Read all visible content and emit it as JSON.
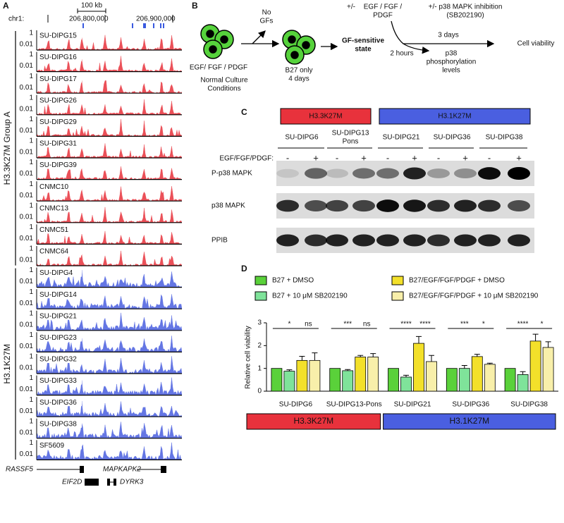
{
  "panel_a": {
    "label": "A",
    "scale_label": "100 kb",
    "chrom": "chr1:",
    "coords": [
      "206,800,000",
      "206,900,000"
    ],
    "track_ticks": [
      "1",
      "0.01"
    ],
    "groups": [
      {
        "name": "H3.3K27M Group A",
        "color": "#e8323c",
        "tracks": [
          "SU-DIPG15",
          "SU-DIPG16",
          "SU-DIPG17",
          "SU-DIPG26",
          "SU-DIPG29",
          "SU-DIPG31",
          "SU-DIPG39",
          "CNMC10",
          "CNMC13",
          "CNMC51",
          "CNMC64"
        ]
      },
      {
        "name": "H3.1K27M",
        "color": "#4a5fe0",
        "tracks": [
          "SU-DIPG4",
          "SU-DIPG14",
          "SU-DIPG21",
          "SU-DIPG23",
          "SU-DIPG32",
          "SU-DIPG33",
          "SU-DIPG36",
          "SU-DIPG38",
          "SF5609"
        ]
      }
    ],
    "genes": [
      "RASSF5",
      "MAPKAPK2",
      "EIF2D",
      "DYRK3"
    ]
  },
  "panel_b": {
    "label": "B",
    "no_gfs": [
      "No",
      "GFs"
    ],
    "normal_gfs": "EGF/ FGF / PDGF",
    "normal": [
      "Normal Culture",
      "Conditions"
    ],
    "b27": [
      "B27 only",
      "4 days"
    ],
    "gf_state": [
      "GF-sensitive",
      "state"
    ],
    "plus_minus": "+/-",
    "gfs": [
      "EGF / FGF /",
      "PDGF"
    ],
    "inhibition": [
      "+/- p38 MAPK inhibition",
      "(SB202190)"
    ],
    "three_days": "3 days",
    "viability": "Cell viability",
    "two_hours": "2 hours",
    "phospho": [
      "p38",
      "phosphorylation",
      "levels"
    ]
  },
  "panel_c": {
    "label": "C",
    "groups": [
      "H3.3K27M",
      "H3.1K27M"
    ],
    "cell_lines": [
      "SU-DIPG6",
      "SU-DIPG13",
      "SU-DIPG21",
      "SU-DIPG36",
      "SU-DIPG38"
    ],
    "sub_label": "Pons",
    "treatment": "EGF/FGF/PDGF:",
    "signs": [
      "-",
      "+"
    ],
    "rows": [
      "P-p38 MAPK",
      "p38 MAPK",
      "PPIB"
    ]
  },
  "chart_data": {
    "type": "bar",
    "panel_label": "D",
    "ylabel": "Relative cell viability",
    "categories": [
      "SU-DIPG6",
      "SU-DIPG13-Pons",
      "SU-DIPG21",
      "SU-DIPG36",
      "SU-DIPG38"
    ],
    "series": [
      {
        "name": "B27 + DMSO",
        "color": "#5ad13a",
        "values": [
          1,
          1,
          1,
          1,
          1
        ],
        "errors": [
          0,
          0,
          0,
          0,
          0
        ]
      },
      {
        "name": "B27 + 10 μM SB202190",
        "color": "#7fe39a",
        "values": [
          0.88,
          0.9,
          0.62,
          1.0,
          0.73
        ],
        "errors": [
          0.06,
          0.05,
          0.08,
          0.13,
          0.13
        ]
      },
      {
        "name": "B27/EGF/FGF/PDGF + DMSO",
        "color": "#f3e02a",
        "values": [
          1.35,
          1.5,
          2.1,
          1.52,
          2.2
        ],
        "errors": [
          0.18,
          0.07,
          0.3,
          0.1,
          0.3
        ]
      },
      {
        "name": "B27/EGF/FGF/PDGF + 10 μM SB202190",
        "color": "#f8efaa",
        "values": [
          1.35,
          1.5,
          1.3,
          1.18,
          1.92
        ],
        "errors": [
          0.33,
          0.15,
          0.27,
          0.05,
          0.25
        ]
      }
    ],
    "significance": [
      [
        "*",
        "ns"
      ],
      [
        "***",
        "ns"
      ],
      [
        "****",
        "****"
      ],
      [
        "***",
        "*"
      ],
      [
        "****",
        "*"
      ]
    ],
    "groups": [
      {
        "label": "H3.3K27M",
        "color": "#e8323c",
        "categories": [
          "SU-DIPG6",
          "SU-DIPG13-Pons"
        ]
      },
      {
        "label": "H3.1K27M",
        "color": "#4a5fe0",
        "categories": [
          "SU-DIPG21",
          "SU-DIPG36",
          "SU-DIPG38"
        ]
      }
    ],
    "ylim": [
      0,
      3
    ],
    "yticks": [
      0,
      1,
      2,
      3
    ]
  }
}
